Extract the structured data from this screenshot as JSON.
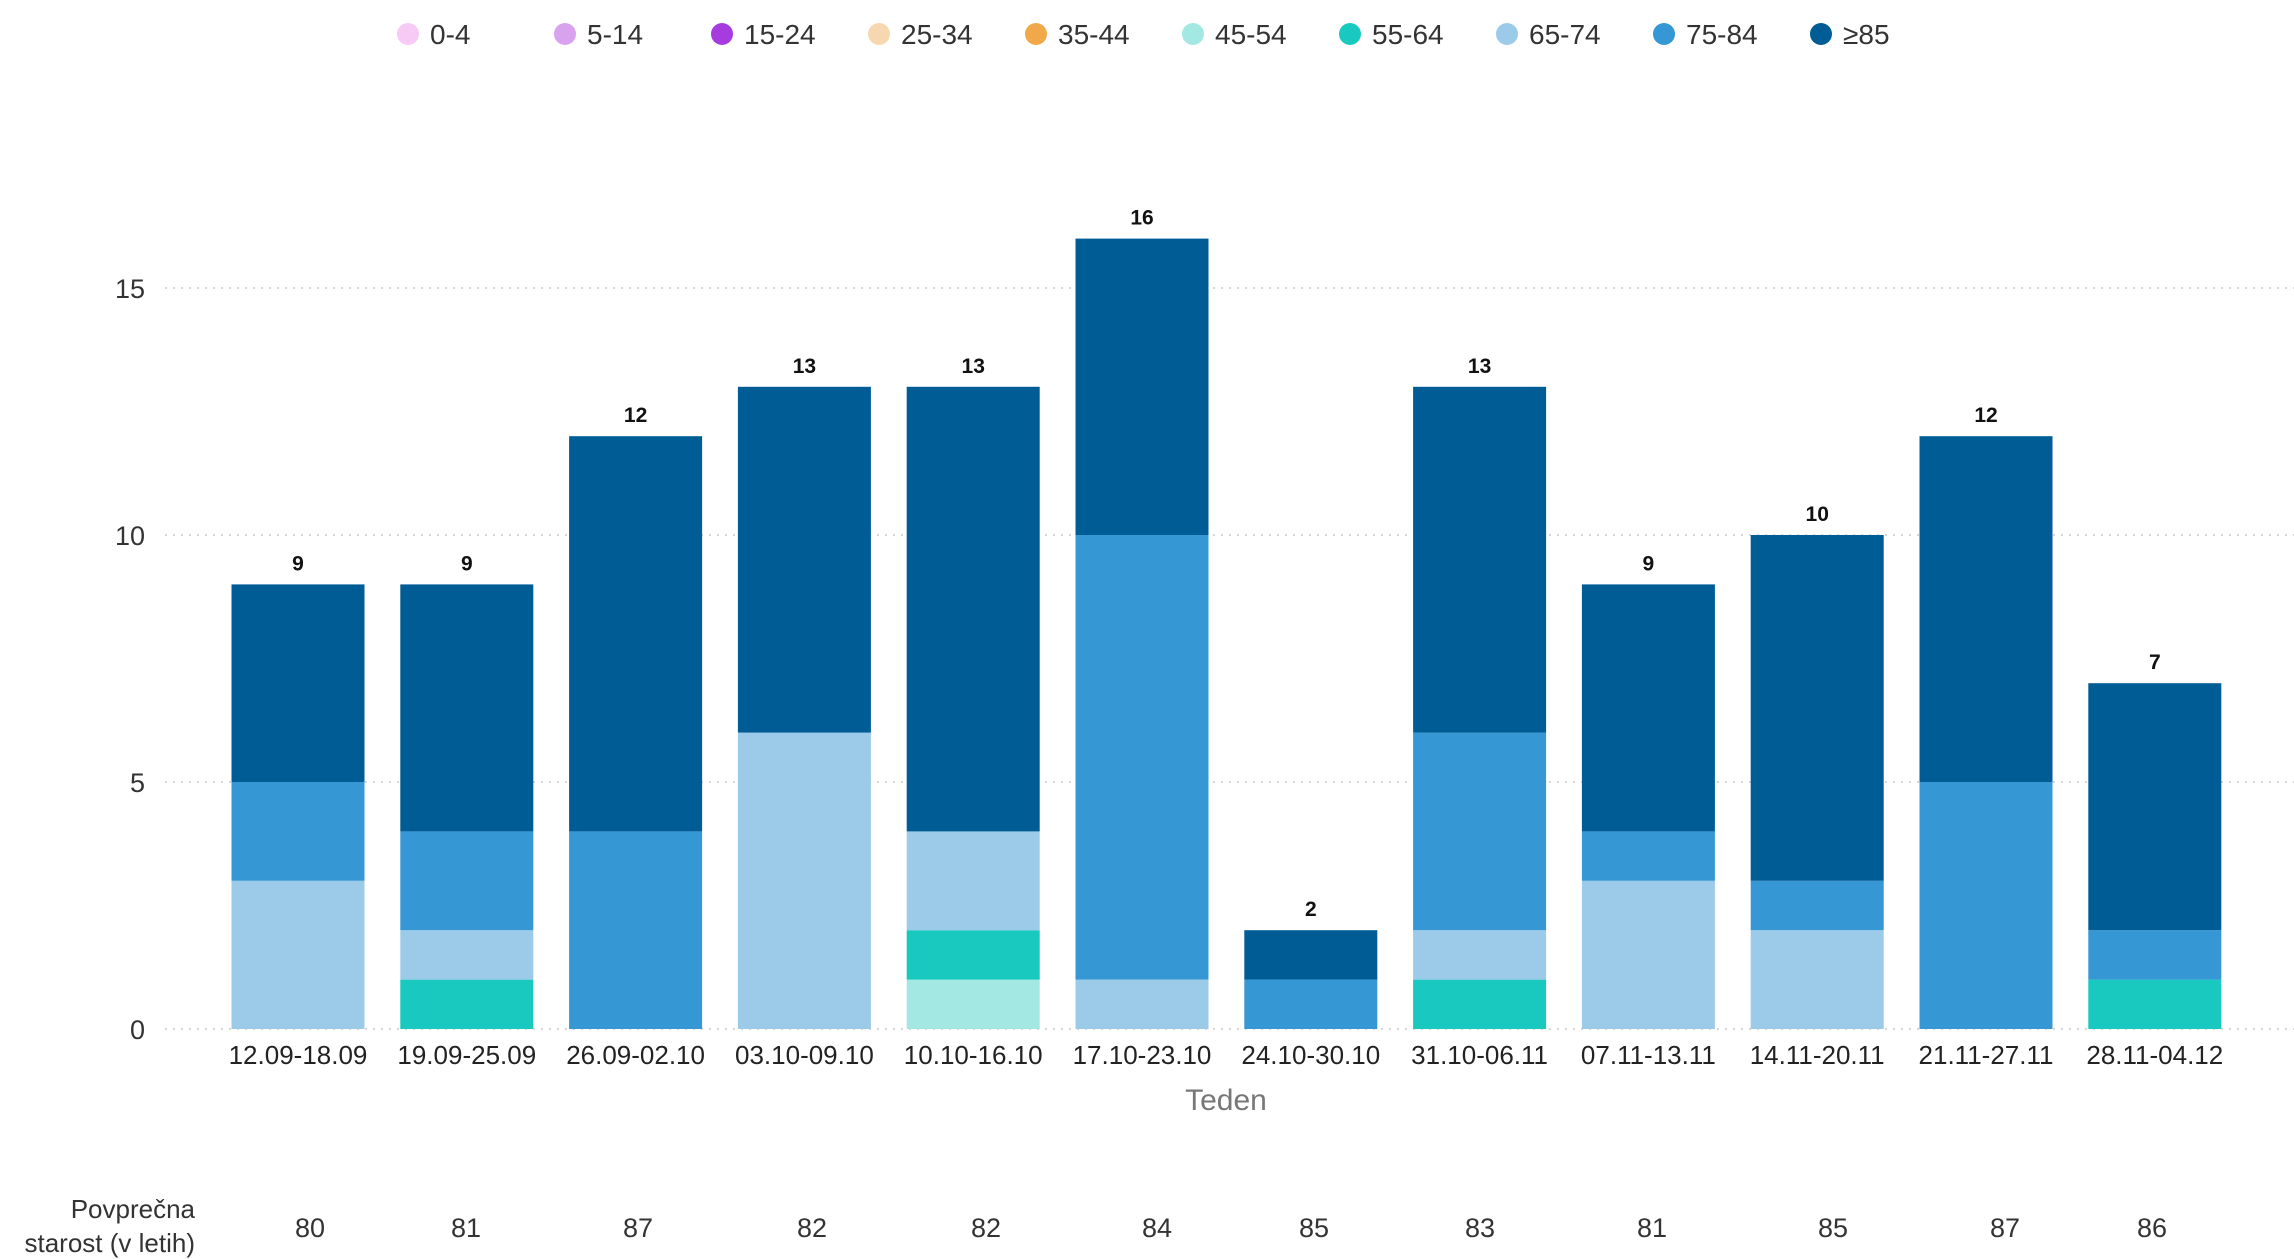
{
  "chart_data": {
    "type": "bar",
    "stacked": true,
    "xlabel": "Teden",
    "ylabel": "",
    "ylim": [
      0,
      16.5
    ],
    "yticks": [
      0,
      5,
      10,
      15
    ],
    "grid": true,
    "legend_position": "top",
    "categories": [
      "12.09-18.09",
      "19.09-25.09",
      "26.09-02.10",
      "03.10-09.10",
      "10.10-16.10",
      "17.10-23.10",
      "24.10-30.10",
      "31.10-06.11",
      "07.11-13.11",
      "14.11-20.11",
      "21.11-27.11",
      "28.11-04.12"
    ],
    "series": [
      {
        "name": "0-4",
        "color": "#f7c9f5",
        "values": [
          0,
          0,
          0,
          0,
          0,
          0,
          0,
          0,
          0,
          0,
          0,
          0
        ]
      },
      {
        "name": "5-14",
        "color": "#d9a2ee",
        "values": [
          0,
          0,
          0,
          0,
          0,
          0,
          0,
          0,
          0,
          0,
          0,
          0
        ]
      },
      {
        "name": "15-24",
        "color": "#a63be0",
        "values": [
          0,
          0,
          0,
          0,
          0,
          0,
          0,
          0,
          0,
          0,
          0,
          0
        ]
      },
      {
        "name": "25-34",
        "color": "#f7d7b0",
        "values": [
          0,
          0,
          0,
          0,
          0,
          0,
          0,
          0,
          0,
          0,
          0,
          0
        ]
      },
      {
        "name": "35-44",
        "color": "#f0a848",
        "values": [
          0,
          0,
          0,
          0,
          0,
          0,
          0,
          0,
          0,
          0,
          0,
          0
        ]
      },
      {
        "name": "45-54",
        "color": "#a3e8e2",
        "values": [
          0,
          0,
          0,
          0,
          1,
          0,
          0,
          0,
          0,
          0,
          0,
          0
        ]
      },
      {
        "name": "55-64",
        "color": "#19c9bf",
        "values": [
          0,
          1,
          0,
          0,
          1,
          0,
          0,
          1,
          0,
          0,
          0,
          1
        ]
      },
      {
        "name": "65-74",
        "color": "#9ccbe9",
        "values": [
          3,
          1,
          0,
          6,
          2,
          1,
          0,
          1,
          3,
          2,
          0,
          0
        ]
      },
      {
        "name": "75-84",
        "color": "#3597d3",
        "values": [
          2,
          2,
          4,
          0,
          0,
          9,
          1,
          4,
          1,
          1,
          5,
          1
        ]
      },
      {
        "name": "≥85",
        "color": "#005c95",
        "values": [
          4,
          5,
          8,
          7,
          9,
          6,
          1,
          7,
          5,
          7,
          7,
          5
        ]
      }
    ],
    "totals": [
      "9",
      "9",
      "12",
      "13",
      "13",
      "16",
      "2",
      "13",
      "9",
      "10",
      "12",
      "7"
    ],
    "average_age": {
      "label_lines": [
        "Povprečna",
        "starost (v letih)"
      ],
      "values": [
        "80",
        "81",
        "87",
        "82",
        "82",
        "84",
        "85",
        "83",
        "81",
        "85",
        "87",
        "86"
      ]
    }
  }
}
